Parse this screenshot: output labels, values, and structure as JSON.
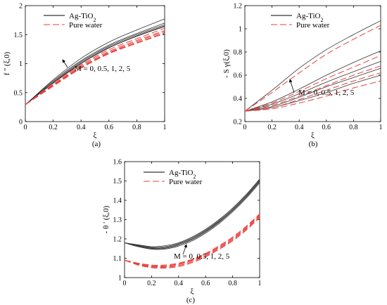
{
  "chart_data": [
    {
      "type": "line",
      "panel_label": "(a)",
      "xlabel": "ξ",
      "ylabel": "f '' (ξ,0)",
      "xlim": [
        0,
        1
      ],
      "ylim": [
        0,
        2
      ],
      "xticks": [
        "0",
        "0.2",
        "0.4",
        "0.6",
        "0.8",
        "1"
      ],
      "yticks": [
        "0",
        "0.5",
        "1",
        "1.5",
        "2"
      ],
      "legend": [
        {
          "name": "Ag-TiO",
          "sub": "2",
          "color": "#000000",
          "dash": "solid"
        },
        {
          "name": "Pure water",
          "sub": "",
          "color": "#e8413e",
          "dash": "dashed"
        }
      ],
      "annotation": "M = 0, 0.5, 1, 2, 5",
      "series": [
        {
          "group": "Ag-TiO2",
          "x": [
            0,
            0.2,
            0.4,
            0.6,
            0.8,
            1
          ],
          "values": [
            0.29,
            0.72,
            1.09,
            1.37,
            1.58,
            1.77
          ]
        },
        {
          "group": "Ag-TiO2",
          "x": [
            0,
            0.2,
            0.4,
            0.6,
            0.8,
            1
          ],
          "values": [
            0.29,
            0.7,
            1.05,
            1.32,
            1.52,
            1.7
          ]
        },
        {
          "group": "Ag-TiO2",
          "x": [
            0,
            0.2,
            0.4,
            0.6,
            0.8,
            1
          ],
          "values": [
            0.29,
            0.68,
            1.03,
            1.3,
            1.5,
            1.67
          ]
        },
        {
          "group": "Ag-TiO2",
          "x": [
            0,
            0.2,
            0.4,
            0.6,
            0.8,
            1
          ],
          "values": [
            0.29,
            0.67,
            1.01,
            1.28,
            1.48,
            1.65
          ]
        },
        {
          "group": "Ag-TiO2",
          "x": [
            0,
            0.2,
            0.4,
            0.6,
            0.8,
            1
          ],
          "values": [
            0.29,
            0.66,
            1.0,
            1.27,
            1.47,
            1.64
          ]
        },
        {
          "group": "Pure water",
          "x": [
            0,
            0.2,
            0.4,
            0.6,
            0.8,
            1
          ],
          "values": [
            0.29,
            0.66,
            0.98,
            1.24,
            1.43,
            1.61
          ]
        },
        {
          "group": "Pure water",
          "x": [
            0,
            0.2,
            0.4,
            0.6,
            0.8,
            1
          ],
          "values": [
            0.29,
            0.64,
            0.96,
            1.21,
            1.4,
            1.57
          ]
        },
        {
          "group": "Pure water",
          "x": [
            0,
            0.2,
            0.4,
            0.6,
            0.8,
            1
          ],
          "values": [
            0.29,
            0.63,
            0.94,
            1.19,
            1.38,
            1.55
          ]
        },
        {
          "group": "Pure water",
          "x": [
            0,
            0.2,
            0.4,
            0.6,
            0.8,
            1
          ],
          "values": [
            0.29,
            0.62,
            0.93,
            1.18,
            1.36,
            1.53
          ]
        },
        {
          "group": "Pure water",
          "x": [
            0,
            0.2,
            0.4,
            0.6,
            0.8,
            1
          ],
          "values": [
            0.29,
            0.61,
            0.92,
            1.17,
            1.35,
            1.52
          ]
        }
      ]
    },
    {
      "type": "line",
      "panel_label": "(b)",
      "xlabel": "ξ",
      "ylabel": "- S γ(ξ,0)",
      "xlim": [
        0,
        1
      ],
      "ylim": [
        0.2,
        1.2
      ],
      "xticks": [
        "0",
        "0.2",
        "0.4",
        "0.6",
        "0.8",
        "1"
      ],
      "yticks": [
        "0.2",
        "0.4",
        "0.6",
        "0.8",
        "1",
        "1.2"
      ],
      "legend": [
        {
          "name": "Ag-TiO",
          "sub": "2",
          "color": "#000000",
          "dash": "solid"
        },
        {
          "name": "Pure water",
          "sub": "",
          "color": "#e8413e",
          "dash": "dashed"
        }
      ],
      "annotation": "M = 0, 0.5, 1, 2, 5",
      "series": [
        {
          "group": "Ag-TiO2",
          "x": [
            0,
            0.2,
            0.4,
            0.6,
            0.8,
            1
          ],
          "values": [
            0.29,
            0.47,
            0.66,
            0.82,
            0.95,
            1.07
          ]
        },
        {
          "group": "Ag-TiO2",
          "x": [
            0,
            0.2,
            0.4,
            0.6,
            0.8,
            1
          ],
          "values": [
            0.29,
            0.37,
            0.48,
            0.6,
            0.71,
            0.81
          ]
        },
        {
          "group": "Ag-TiO2",
          "x": [
            0,
            0.2,
            0.4,
            0.6,
            0.8,
            1
          ],
          "values": [
            0.29,
            0.35,
            0.44,
            0.54,
            0.63,
            0.72
          ]
        },
        {
          "group": "Ag-TiO2",
          "x": [
            0,
            0.2,
            0.4,
            0.6,
            0.8,
            1
          ],
          "values": [
            0.29,
            0.33,
            0.41,
            0.5,
            0.58,
            0.66
          ]
        },
        {
          "group": "Ag-TiO2",
          "x": [
            0,
            0.2,
            0.4,
            0.6,
            0.8,
            1
          ],
          "values": [
            0.29,
            0.32,
            0.38,
            0.45,
            0.53,
            0.6
          ]
        },
        {
          "group": "Pure water",
          "x": [
            0,
            0.2,
            0.4,
            0.6,
            0.8,
            1
          ],
          "values": [
            0.29,
            0.45,
            0.62,
            0.78,
            0.91,
            1.03
          ]
        },
        {
          "group": "Pure water",
          "x": [
            0,
            0.2,
            0.4,
            0.6,
            0.8,
            1
          ],
          "values": [
            0.29,
            0.36,
            0.46,
            0.57,
            0.67,
            0.77
          ]
        },
        {
          "group": "Pure water",
          "x": [
            0,
            0.2,
            0.4,
            0.6,
            0.8,
            1
          ],
          "values": [
            0.29,
            0.34,
            0.42,
            0.51,
            0.6,
            0.68
          ]
        },
        {
          "group": "Pure water",
          "x": [
            0,
            0.2,
            0.4,
            0.6,
            0.8,
            1
          ],
          "values": [
            0.29,
            0.32,
            0.39,
            0.47,
            0.55,
            0.62
          ]
        },
        {
          "group": "Pure water",
          "x": [
            0,
            0.2,
            0.4,
            0.6,
            0.8,
            1
          ],
          "values": [
            0.29,
            0.31,
            0.36,
            0.42,
            0.49,
            0.55
          ]
        }
      ]
    },
    {
      "type": "line",
      "panel_label": "(c)",
      "xlabel": "ξ",
      "ylabel": "- θ ' (ξ,0)",
      "xlim": [
        0,
        1
      ],
      "ylim": [
        1,
        1.6
      ],
      "xticks": [
        "0",
        "0.2",
        "0.4",
        "0.6",
        "0.8",
        "1"
      ],
      "yticks": [
        "1",
        "1.1",
        "1.2",
        "1.3",
        "1.4",
        "1.5",
        "1.6"
      ],
      "legend": [
        {
          "name": "Ag-TiO",
          "sub": "2",
          "color": "#000000",
          "dash": "solid"
        },
        {
          "name": "Pure water",
          "sub": "",
          "color": "#e8413e",
          "dash": "dashed"
        }
      ],
      "annotation": "M = 0, 0.5, 1, 2, 5",
      "series": [
        {
          "group": "Ag-TiO2",
          "x": [
            0,
            0.1,
            0.2,
            0.3,
            0.4,
            0.5,
            0.6,
            0.7,
            0.8,
            0.9,
            1
          ],
          "values": [
            1.18,
            1.17,
            1.16,
            1.165,
            1.18,
            1.21,
            1.25,
            1.3,
            1.36,
            1.43,
            1.51
          ]
        },
        {
          "group": "Ag-TiO2",
          "x": [
            0,
            0.1,
            0.2,
            0.3,
            0.4,
            0.5,
            0.6,
            0.7,
            0.8,
            0.9,
            1
          ],
          "values": [
            1.18,
            1.167,
            1.156,
            1.16,
            1.176,
            1.205,
            1.245,
            1.295,
            1.355,
            1.425,
            1.505
          ]
        },
        {
          "group": "Ag-TiO2",
          "x": [
            0,
            0.1,
            0.2,
            0.3,
            0.4,
            0.5,
            0.6,
            0.7,
            0.8,
            0.9,
            1
          ],
          "values": [
            1.18,
            1.165,
            1.153,
            1.156,
            1.172,
            1.2,
            1.24,
            1.29,
            1.35,
            1.42,
            1.5
          ]
        },
        {
          "group": "Ag-TiO2",
          "x": [
            0,
            0.1,
            0.2,
            0.3,
            0.4,
            0.5,
            0.6,
            0.7,
            0.8,
            0.9,
            1
          ],
          "values": [
            1.18,
            1.163,
            1.15,
            1.152,
            1.168,
            1.196,
            1.236,
            1.286,
            1.346,
            1.416,
            1.496
          ]
        },
        {
          "group": "Ag-TiO2",
          "x": [
            0,
            0.1,
            0.2,
            0.3,
            0.4,
            0.5,
            0.6,
            0.7,
            0.8,
            0.9,
            1
          ],
          "values": [
            1.18,
            1.16,
            1.147,
            1.148,
            1.163,
            1.19,
            1.23,
            1.28,
            1.34,
            1.41,
            1.49
          ]
        },
        {
          "group": "Pure water",
          "x": [
            0,
            0.1,
            0.2,
            0.3,
            0.4,
            0.5,
            0.6,
            0.7,
            0.8,
            0.9,
            1
          ],
          "values": [
            1.09,
            1.075,
            1.065,
            1.065,
            1.075,
            1.095,
            1.125,
            1.165,
            1.21,
            1.265,
            1.33
          ]
        },
        {
          "group": "Pure water",
          "x": [
            0,
            0.1,
            0.2,
            0.3,
            0.4,
            0.5,
            0.6,
            0.7,
            0.8,
            0.9,
            1
          ],
          "values": [
            1.09,
            1.072,
            1.061,
            1.061,
            1.071,
            1.091,
            1.121,
            1.16,
            1.205,
            1.26,
            1.325
          ]
        },
        {
          "group": "Pure water",
          "x": [
            0,
            0.1,
            0.2,
            0.3,
            0.4,
            0.5,
            0.6,
            0.7,
            0.8,
            0.9,
            1
          ],
          "values": [
            1.09,
            1.07,
            1.058,
            1.057,
            1.067,
            1.087,
            1.117,
            1.156,
            1.2,
            1.255,
            1.32
          ]
        },
        {
          "group": "Pure water",
          "x": [
            0,
            0.1,
            0.2,
            0.3,
            0.4,
            0.5,
            0.6,
            0.7,
            0.8,
            0.9,
            1
          ],
          "values": [
            1.09,
            1.068,
            1.055,
            1.053,
            1.062,
            1.082,
            1.112,
            1.151,
            1.195,
            1.25,
            1.315
          ]
        },
        {
          "group": "Pure water",
          "x": [
            0,
            0.1,
            0.2,
            0.3,
            0.4,
            0.5,
            0.6,
            0.7,
            0.8,
            0.9,
            1
          ],
          "values": [
            1.09,
            1.065,
            1.051,
            1.049,
            1.057,
            1.077,
            1.107,
            1.146,
            1.19,
            1.245,
            1.31
          ]
        }
      ]
    }
  ]
}
